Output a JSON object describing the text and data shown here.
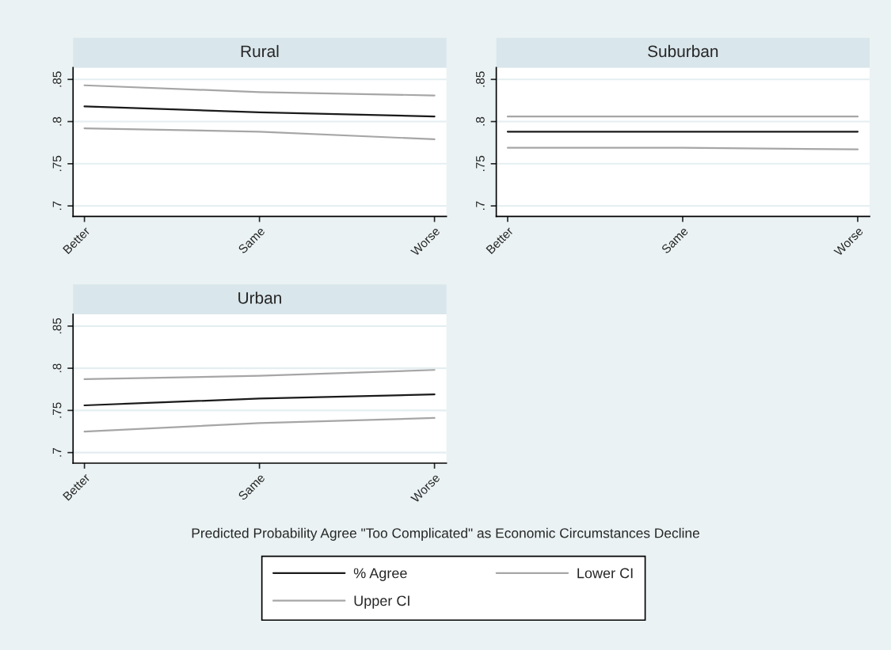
{
  "chart_data": [
    {
      "type": "line",
      "title": "Rural",
      "categories": [
        "Better",
        "Same",
        "Worse"
      ],
      "ylim": [
        0.6875,
        0.864
      ],
      "yticks": [
        {
          "value": 0.7,
          "label": ".7"
        },
        {
          "value": 0.75,
          "label": ".75"
        },
        {
          "value": 0.8,
          "label": ".8"
        },
        {
          "value": 0.85,
          "label": ".85"
        }
      ],
      "grid": "y",
      "legend": "bottom",
      "line_style": "solid",
      "marker": "none",
      "annotations": [
        "Predicted Probability Agree \"Too Complicated\" as Economic Circumstances Decline"
      ],
      "series": [
        {
          "name": "% Agree",
          "color": "#1a1a1a",
          "values": [
            0.818,
            0.811,
            0.806
          ]
        },
        {
          "name": "Lower CI",
          "color": "#a6a6a6",
          "values": [
            0.792,
            0.788,
            0.779
          ]
        },
        {
          "name": "Upper CI",
          "color": "#a6a6a6",
          "values": [
            0.843,
            0.835,
            0.831
          ]
        }
      ]
    },
    {
      "type": "line",
      "title": "Suburban",
      "categories": [
        "Better",
        "Same",
        "Worse"
      ],
      "ylim": [
        0.6875,
        0.864
      ],
      "yticks": [
        {
          "value": 0.7,
          "label": ".7"
        },
        {
          "value": 0.75,
          "label": ".75"
        },
        {
          "value": 0.8,
          "label": ".8"
        },
        {
          "value": 0.85,
          "label": ".85"
        }
      ],
      "grid": "y",
      "line_style": "solid",
      "marker": "none",
      "series": [
        {
          "color": "#1a1a1a",
          "values": [
            0.788,
            0.788,
            0.788
          ]
        },
        {
          "color": "#a6a6a6",
          "values": [
            0.769,
            0.769,
            0.767
          ]
        },
        {
          "color": "#a6a6a6",
          "values": [
            0.806,
            0.806,
            0.806
          ]
        }
      ]
    },
    {
      "type": "line",
      "title": "Urban",
      "categories": [
        "Better",
        "Same",
        "Worse"
      ],
      "ylim": [
        0.6875,
        0.864
      ],
      "yticks": [
        {
          "value": 0.7,
          "label": ".7"
        },
        {
          "value": 0.75,
          "label": ".75"
        },
        {
          "value": 0.8,
          "label": ".8"
        },
        {
          "value": 0.85,
          "label": ".85"
        }
      ],
      "grid": "y",
      "line_style": "solid",
      "marker": "none",
      "series": [
        {
          "color": "#1a1a1a",
          "values": [
            0.756,
            0.764,
            0.769
          ]
        },
        {
          "color": "#a6a6a6",
          "values": [
            0.725,
            0.735,
            0.741
          ]
        },
        {
          "color": "#a6a6a6",
          "values": [
            0.787,
            0.791,
            0.798
          ]
        }
      ]
    }
  ]
}
